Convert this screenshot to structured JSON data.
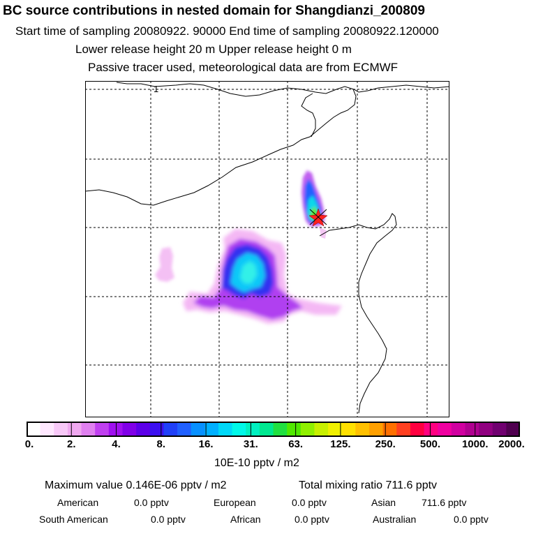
{
  "header": {
    "title": "BC  source contributions in nested domain for Shangdianzi_200809",
    "line1": "Start time of sampling 20080922. 90000     End time of sampling 20080922.120000",
    "line2": "Lower release height   20 m          Upper release height    0 m",
    "line3": "Passive tracer used, meteorological data are from ECMWF"
  },
  "map": {
    "corner_label": "1",
    "border_color": "#000000"
  },
  "colorbar": {
    "colors": [
      "#ffffff",
      "#ffe8ff",
      "#f8c8f8",
      "#f0a8f0",
      "#e080f0",
      "#c040f0",
      "#a010f0",
      "#8000e8",
      "#5c00e8",
      "#3c10f0",
      "#2040f8",
      "#2060ff",
      "#0890ff",
      "#00b0ff",
      "#00d8f8",
      "#00f8e8",
      "#00f0c0",
      "#00e890",
      "#20e040",
      "#50e800",
      "#90f000",
      "#c8f000",
      "#f0f000",
      "#ffe000",
      "#ffc000",
      "#ffa000",
      "#ff7000",
      "#ff4020",
      "#ff0040",
      "#ff0080",
      "#f000a0",
      "#d000a0",
      "#b00090",
      "#900080",
      "#700070",
      "#500050"
    ],
    "tick_labels": [
      "0.",
      "2.",
      "4.",
      "8.",
      "16.",
      "31.",
      "63.",
      "125.",
      "250.",
      "500.",
      "1000.",
      "2000."
    ],
    "units": "10E-10 pptv / m2"
  },
  "stats": {
    "max_label": "Maximum value  0.146E-06 pptv / m2",
    "total_label": "Total mixing ratio      711.6 pptv",
    "row1": [
      {
        "region": "American",
        "value": "0.0 pptv"
      },
      {
        "region": "European",
        "value": "0.0 pptv"
      },
      {
        "region": "Asian",
        "value": "711.6 pptv"
      }
    ],
    "row2": [
      {
        "region": "South American",
        "value": "0.0 pptv"
      },
      {
        "region": "African",
        "value": "0.0 pptv"
      },
      {
        "region": "Australian",
        "value": "0.0 pptv"
      }
    ]
  }
}
